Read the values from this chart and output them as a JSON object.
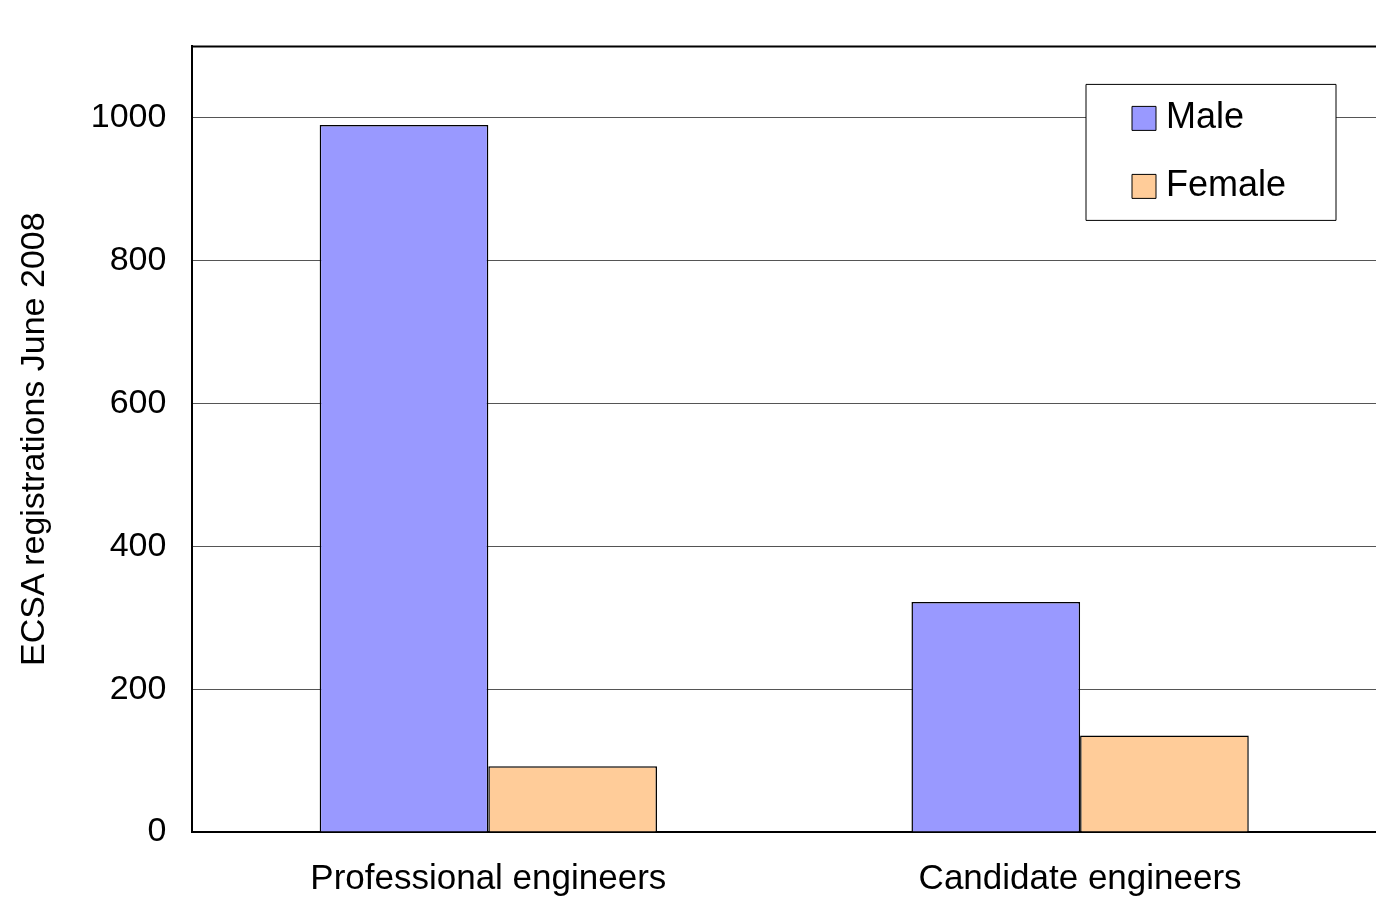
{
  "chart_data": {
    "type": "bar",
    "ylabel": "ECSA registrations June 2008",
    "categories": [
      "Professional engineers",
      "Candidate engineers"
    ],
    "series": [
      {
        "name": "Male",
        "color": "#9999ff",
        "values": [
          990,
          322
        ]
      },
      {
        "name": "Female",
        "color": "#ffcc99",
        "values": [
          92,
          135
        ]
      }
    ],
    "ylim": [
      0,
      1100
    ],
    "yticks": [
      0,
      200,
      400,
      600,
      800,
      1000
    ],
    "grid": "y",
    "legend": "top right"
  }
}
